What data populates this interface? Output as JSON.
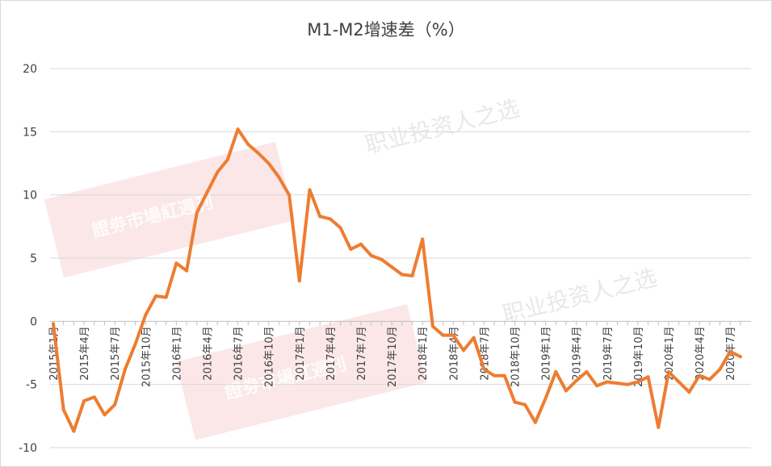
{
  "watermarks": {
    "investor_pick": "职业投资人之选",
    "brand": "證劵市場紅週刊"
  },
  "chart_data": {
    "type": "line",
    "title": "M1-M2增速差（%）",
    "xlabel": "",
    "ylabel": "",
    "ylim": [
      -10,
      20
    ],
    "yticks": [
      -10,
      -5,
      0,
      5,
      10,
      15,
      20
    ],
    "x_tick_labels": [
      "2015年1月",
      "2015年4月",
      "2015年7月",
      "2015年10月",
      "2016年1月",
      "2016年4月",
      "2016年7月",
      "2016年10月",
      "2017年1月",
      "2017年4月",
      "2017年7月",
      "2017年10月",
      "2018年1月",
      "2018年4月",
      "2018年7月",
      "2018年10月",
      "2019年1月",
      "2019年4月",
      "2019年7月",
      "2019年10月",
      "2020年1月",
      "2020年4月",
      "2020年7月"
    ],
    "x_tick_every_months": 3,
    "grid": "horizontal",
    "legend": "none",
    "line_color": "#ED7D31",
    "series": [
      {
        "values": [
          -0.2,
          -7.0,
          -8.7,
          -6.3,
          -6.0,
          -7.4,
          -6.6,
          -3.8,
          -1.8,
          0.5,
          2.0,
          1.9,
          4.6,
          4.0,
          8.6,
          10.2,
          11.8,
          12.8,
          15.2,
          14.0,
          13.3,
          12.5,
          11.4,
          10.0,
          3.2,
          10.4,
          8.3,
          8.1,
          7.4,
          5.7,
          6.1,
          5.2,
          4.9,
          4.3,
          3.7,
          3.6,
          6.5,
          -0.4,
          -1.1,
          -1.1,
          -2.3,
          -1.3,
          -3.8,
          -4.3,
          -4.3,
          -6.4,
          -6.6,
          -8.0,
          -6.1,
          -4.0,
          -5.5,
          -4.7,
          -4.0,
          -5.1,
          -4.8,
          -4.9,
          -5.0,
          -4.8,
          -4.4,
          -8.4,
          -4.0,
          -4.8,
          -5.6,
          -4.3,
          -4.6,
          -3.8,
          -2.4,
          -2.8
        ]
      }
    ]
  }
}
